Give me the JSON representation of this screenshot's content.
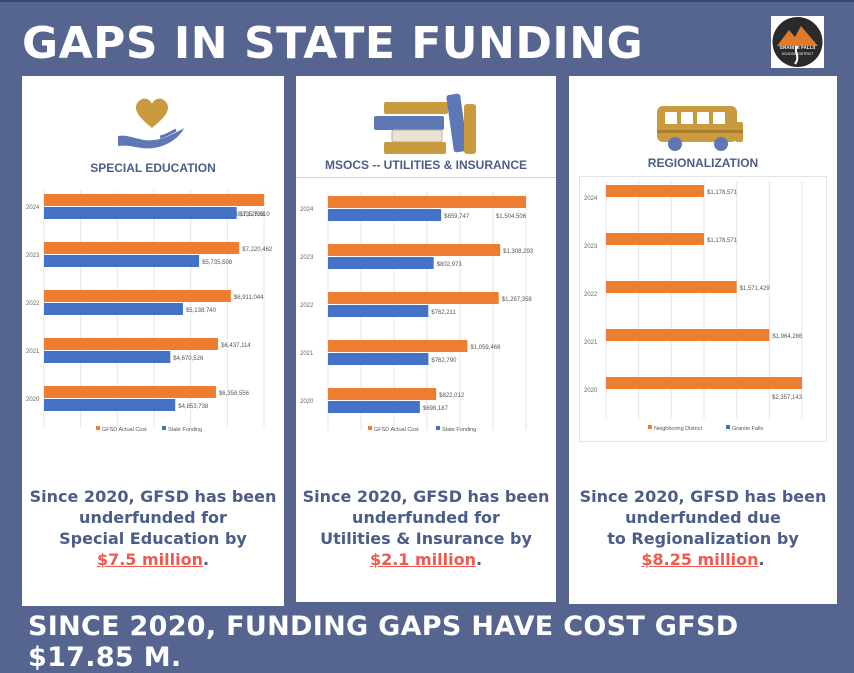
{
  "header": {
    "title": "GAPS IN STATE FUNDING"
  },
  "logo": {
    "line1": "GRANITE FALLS",
    "line2": "SCHOOL DISTRICT"
  },
  "colors": {
    "background": "#55658f",
    "orange": "#ed7d31",
    "blue": "#4472c4",
    "accent_text": "#4b5d88",
    "amount": "#ef5a50"
  },
  "panels": [
    {
      "title": "SPECIAL EDUCATION",
      "icon": "heart-in-hand-icon",
      "caption": {
        "line1": "Since 2020, GFSD has been",
        "line2": "underfunded for",
        "line3": "Special Education by",
        "amount": "$7.5 million",
        "suffix": "."
      }
    },
    {
      "title": "MSOCS -- UTILITIES & INSURANCE",
      "icon": "books-icon",
      "caption": {
        "line1": "Since 2020, GFSD has been",
        "line2": "underfunded for",
        "line3": "Utilities & Insurance by",
        "amount": "$2.1 million",
        "suffix": "."
      }
    },
    {
      "title": "REGIONALIZATION",
      "icon": "school-bus-icon",
      "caption": {
        "line1": "Since 2020, GFSD has been",
        "line2": "underfunded due",
        "line3": "to Regionalization by",
        "amount": "$8.25 million",
        "suffix": "."
      }
    }
  ],
  "footer": {
    "text": "SINCE 2020, FUNDING GAPS HAVE COST GFSD $17.85 M."
  },
  "chart_data": [
    {
      "type": "bar",
      "orientation": "horizontal",
      "categories": [
        "2024",
        "2023",
        "2022",
        "2021",
        "2020"
      ],
      "series": [
        {
          "name": "GFSD Actual Cost",
          "color": "#ed7d31",
          "values": [
            8135793,
            7220462,
            6911044,
            6437114,
            6358556
          ],
          "labels": [
            "$8,135,793",
            "$7,220,462",
            "$6,911,044",
            "$6,437,114",
            "$6,358,556"
          ]
        },
        {
          "name": "State Funding",
          "color": "#4472c4",
          "values": [
            7125610,
            5735508,
            5138740,
            4670526,
            4853738
          ],
          "labels": [
            "$7,125,610",
            "$5,735,508",
            "$5,138,740",
            "$4,670,526",
            "$4,853,738"
          ]
        }
      ],
      "xlim": [
        0,
        8135793
      ],
      "grid": true,
      "legend": "bottom"
    },
    {
      "type": "bar",
      "orientation": "horizontal",
      "categories": [
        "2024",
        "2023",
        "2022",
        "2021",
        "2020"
      ],
      "series": [
        {
          "name": "GFSD Actual Cost",
          "color": "#ed7d31",
          "values": [
            1504506,
            1308293,
            1297358,
            1059468,
            822012
          ],
          "labels": [
            "$1,504,506",
            "$1,308,293",
            "$1,297,358",
            "$1,059,468",
            "$822,012"
          ]
        },
        {
          "name": "State Funding",
          "color": "#4472c4",
          "values": [
            859747,
            802973,
            762211,
            762790,
            698187
          ],
          "labels": [
            "$859,747",
            "$802,973",
            "$762,211",
            "$762,790",
            "$698,187"
          ]
        }
      ],
      "xlim": [
        0,
        1504506
      ],
      "grid": true,
      "legend": "bottom"
    },
    {
      "type": "bar",
      "orientation": "horizontal",
      "categories": [
        "2024",
        "2023",
        "2022",
        "2021",
        "2020"
      ],
      "series": [
        {
          "name": "Neighboring District",
          "color": "#ed7d31",
          "values": [
            1178571,
            1178571,
            1571429,
            1964286,
            2357143
          ],
          "labels": [
            "$1,178,571",
            "$1,178,571",
            "$1,571,429",
            "$1,964,286",
            "$2,357,143"
          ]
        },
        {
          "name": "Granite Falls",
          "color": "#4472c4",
          "values": [
            0,
            0,
            0,
            0,
            0
          ],
          "labels": []
        }
      ],
      "xlim": [
        0,
        2357143
      ],
      "grid": true,
      "legend": "bottom"
    }
  ]
}
